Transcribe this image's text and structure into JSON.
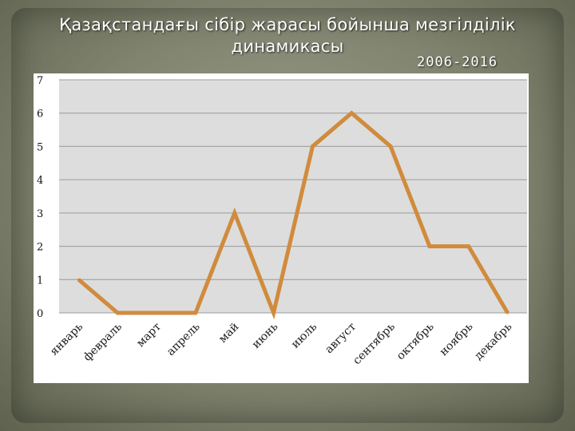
{
  "slide": {
    "title_line1": "Қазақстандағы сібір жарасы бойынша мезгілділік",
    "title_line2": "динамикасы",
    "years": "2006-2016"
  },
  "chart_data": {
    "type": "line",
    "categories": [
      "январь",
      "февраль",
      "март",
      "апрель",
      "май",
      "июнь",
      "июль",
      "август",
      "сентябрь",
      "октябрь",
      "ноябрь",
      "декабрь"
    ],
    "series": [
      {
        "values": [
          1,
          0,
          0,
          0,
          3,
          0,
          5,
          6,
          5,
          2,
          2,
          0
        ]
      }
    ],
    "ylim": [
      0,
      7
    ],
    "yticks": [
      0,
      1,
      2,
      3,
      4,
      5,
      6,
      7
    ],
    "grid": true,
    "legend": "none",
    "colors": {
      "line": "#d08b3c",
      "plot_bg": "#dddddd",
      "grid": "#9a9a9a",
      "chart_bg": "#ffffff"
    }
  }
}
